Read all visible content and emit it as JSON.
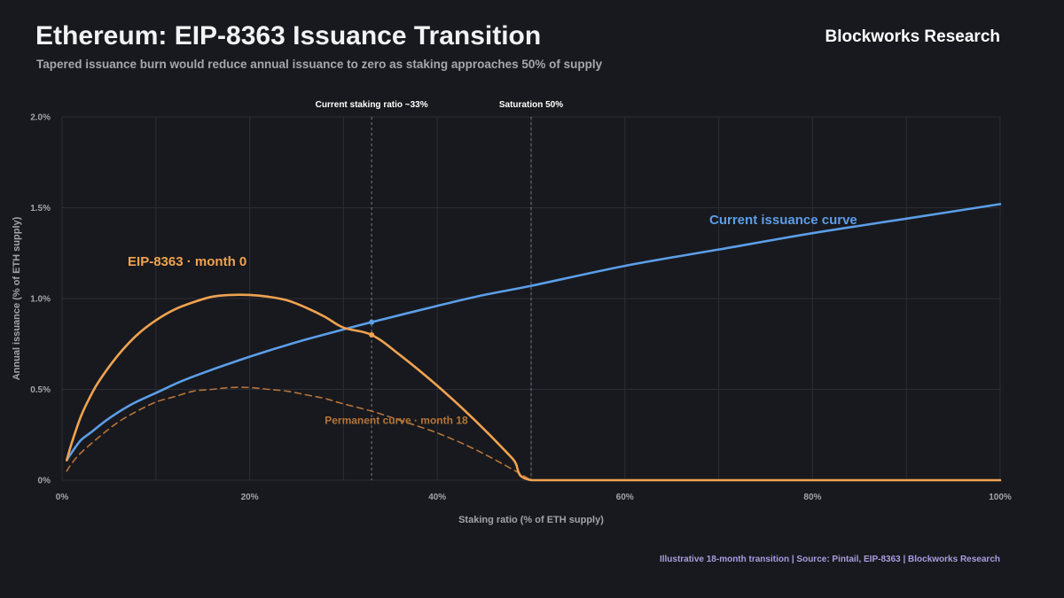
{
  "header": {
    "title": "Ethereum: EIP-8363 Issuance Transition",
    "subtitle": "Tapered issuance burn would reduce annual issuance to zero as staking approaches 50% of supply",
    "brand": "Blockworks Research"
  },
  "footer": {
    "source": "Illustrative 18-month transition | Source: Pintail, EIP-8363 | Blockworks Research"
  },
  "chart_data": {
    "type": "line",
    "xlabel": "Staking ratio (% of ETH supply)",
    "ylabel": "Annual issuance (% of ETH supply)",
    "xlim": [
      0,
      100
    ],
    "ylim": [
      0,
      2.0
    ],
    "x_ticks": [
      0,
      20,
      40,
      60,
      80,
      100
    ],
    "x_tick_labels": [
      "0%",
      "20%",
      "40%",
      "60%",
      "80%",
      "100%"
    ],
    "y_ticks": [
      0,
      0.5,
      1.0,
      1.5,
      2.0
    ],
    "y_tick_labels": [
      "0%",
      "0.5%",
      "1.0%",
      "1.5%",
      "2.0%"
    ],
    "grid": true,
    "reference_lines": [
      {
        "x": 33,
        "label": "Current staking ratio ~33%"
      },
      {
        "x": 50,
        "label": "Saturation 50%"
      }
    ],
    "series": [
      {
        "name": "Current issuance curve",
        "color": "#5b9ee8",
        "style": "solid",
        "label_at": [
          69,
          1.41
        ],
        "x": [
          0.5,
          1,
          2,
          3,
          5,
          7.5,
          10,
          12.5,
          15,
          20,
          25,
          30,
          33,
          40,
          45,
          50,
          60,
          70,
          80,
          90,
          100
        ],
        "y": [
          0.11,
          0.15,
          0.22,
          0.26,
          0.34,
          0.42,
          0.48,
          0.54,
          0.59,
          0.68,
          0.76,
          0.83,
          0.87,
          0.96,
          1.02,
          1.07,
          1.18,
          1.27,
          1.36,
          1.44,
          1.52
        ]
      },
      {
        "name": "EIP-8363 · month 0",
        "color": "#f0a350",
        "style": "solid",
        "label_at": [
          7,
          1.18
        ],
        "x": [
          0.5,
          1,
          2,
          3,
          4,
          6,
          8,
          10,
          12,
          14,
          16,
          18,
          20,
          22,
          24,
          26,
          28,
          30,
          33,
          36,
          40,
          44,
          48,
          50,
          60,
          70,
          80,
          90,
          100
        ],
        "y": [
          0.11,
          0.2,
          0.35,
          0.46,
          0.55,
          0.69,
          0.8,
          0.88,
          0.94,
          0.98,
          1.01,
          1.02,
          1.02,
          1.01,
          0.99,
          0.95,
          0.9,
          0.84,
          0.8,
          0.69,
          0.52,
          0.33,
          0.12,
          0.0,
          0.0,
          0.0,
          0.0,
          0.0,
          0.0
        ]
      },
      {
        "name": "Permanent curve · month 18",
        "color": "#b5743a",
        "style": "dashed",
        "label_at": [
          28,
          0.31
        ],
        "x": [
          0.5,
          1,
          2,
          4,
          6,
          8,
          10,
          12,
          14,
          16,
          18,
          20,
          22,
          24,
          26,
          28,
          30,
          33,
          36,
          40,
          44,
          48,
          50
        ],
        "y": [
          0.05,
          0.09,
          0.15,
          0.24,
          0.32,
          0.38,
          0.43,
          0.46,
          0.49,
          0.5,
          0.51,
          0.51,
          0.5,
          0.49,
          0.47,
          0.45,
          0.42,
          0.38,
          0.33,
          0.26,
          0.17,
          0.06,
          0.0
        ]
      }
    ],
    "markers": [
      {
        "x": 33,
        "y": 0.87,
        "color": "#5b9ee8"
      },
      {
        "x": 33,
        "y": 0.8,
        "color": "#f0a350"
      }
    ]
  }
}
